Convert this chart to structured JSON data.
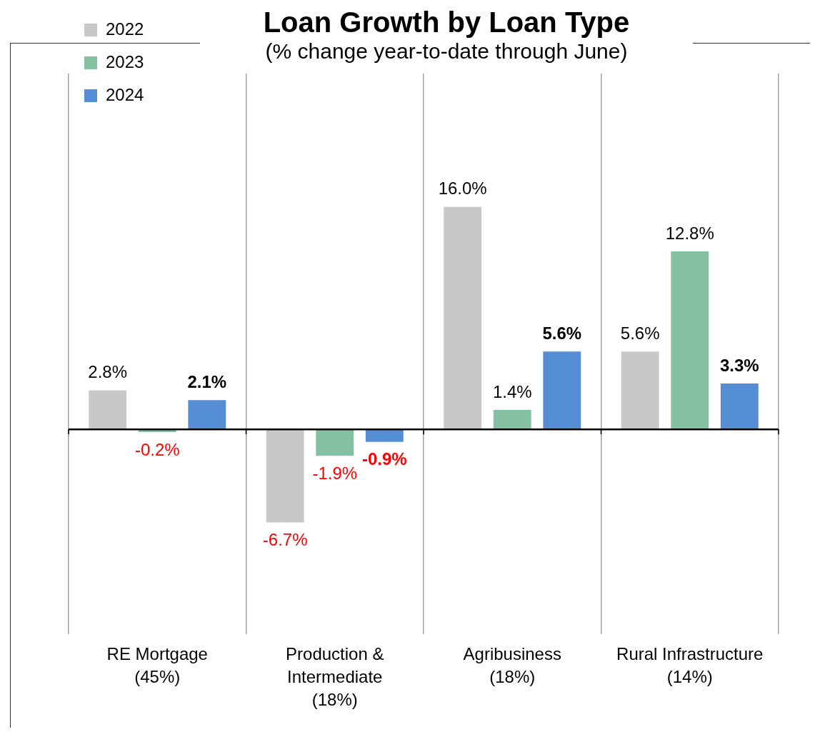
{
  "chart_data": {
    "type": "bar",
    "title": "Loan Growth by Loan Type",
    "subtitle": "(% change year-to-date through June)",
    "categories": [
      "RE Mortgage\n(45%)",
      "Production &\nIntermediate\n(18%)",
      "Agribusiness\n(18%)",
      "Rural Infrastructure\n(14%)"
    ],
    "series": [
      {
        "name": "2022",
        "color": "#c8c8c8",
        "values": [
          2.8,
          -6.7,
          16.0,
          5.6
        ],
        "value_labels": [
          "2.8%",
          "-6.7%",
          "16.0%",
          "5.6%"
        ]
      },
      {
        "name": "2023",
        "color": "#84c1a3",
        "values": [
          -0.2,
          -1.9,
          1.4,
          12.8
        ],
        "value_labels": [
          "-0.2%",
          "-1.9%",
          "1.4%",
          "12.8%"
        ]
      },
      {
        "name": "2024",
        "color": "#558ed5",
        "values": [
          2.1,
          -0.9,
          5.6,
          3.3
        ],
        "value_labels": [
          "2.1%",
          "-0.9%",
          "5.6%",
          "3.3%"
        ]
      }
    ],
    "grid": "x",
    "legend": "top left"
  }
}
